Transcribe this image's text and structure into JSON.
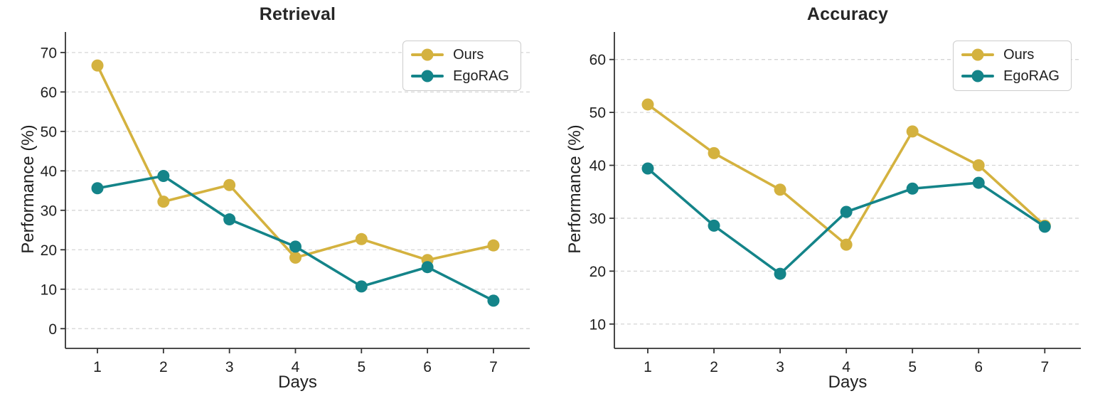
{
  "figure": {
    "background": "#ffffff",
    "grid_color": "#d5d5d5",
    "spine_color": "#333333",
    "text_color": "#1f1f1f"
  },
  "chart_data": [
    {
      "type": "line",
      "title": "Retrieval",
      "xlabel": "Days",
      "ylabel": "Performance (%)",
      "x": [
        1,
        2,
        3,
        4,
        5,
        6,
        7
      ],
      "xticks": [
        1,
        2,
        3,
        4,
        5,
        6,
        7
      ],
      "yticks": [
        0,
        10,
        20,
        30,
        40,
        50,
        60,
        70
      ],
      "xlim": [
        0.515,
        7.55
      ],
      "ylim": [
        -5.0,
        75.2
      ],
      "grid": "horizontal-dashed",
      "legend_position": "upper right",
      "series": [
        {
          "name": "Ours",
          "color": "#d4b23f",
          "values": [
            66.7,
            32.2,
            36.4,
            18.0,
            22.7,
            17.4,
            21.1
          ]
        },
        {
          "name": "EgoRAG",
          "color": "#148489",
          "values": [
            35.6,
            38.7,
            27.7,
            20.8,
            10.7,
            15.6,
            7.1
          ]
        }
      ]
    },
    {
      "type": "line",
      "title": "Accuracy",
      "xlabel": "Days",
      "ylabel": "Performance (%)",
      "x": [
        1,
        2,
        3,
        4,
        5,
        6,
        7
      ],
      "xticks": [
        1,
        2,
        3,
        4,
        5,
        6,
        7
      ],
      "yticks": [
        10,
        20,
        30,
        40,
        50,
        60
      ],
      "xlim": [
        0.495,
        7.545
      ],
      "ylim": [
        5.4,
        65.2
      ],
      "grid": "horizontal-dashed",
      "legend_position": "upper right",
      "series": [
        {
          "name": "Ours",
          "color": "#d4b23f",
          "values": [
            51.5,
            42.3,
            35.4,
            25.0,
            46.4,
            40.0,
            28.6
          ]
        },
        {
          "name": "EgoRAG",
          "color": "#148489",
          "values": [
            39.4,
            28.6,
            19.5,
            31.2,
            35.6,
            36.7,
            28.4
          ]
        }
      ]
    }
  ]
}
